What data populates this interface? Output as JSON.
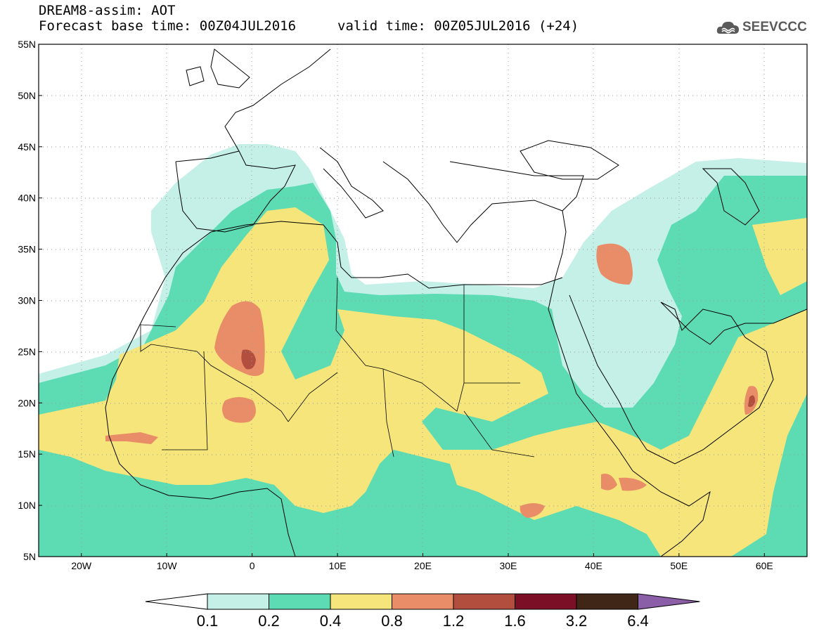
{
  "header": {
    "model_line": "DREAM8-assim: AOT",
    "base_time_line": "Forecast base time: 00Z04JUL2016",
    "valid_time_line": "valid time: 00Z05JUL2016 (+24)",
    "logo_text": "SEEVCCC",
    "logo_icon": "cloud-logo-icon"
  },
  "map": {
    "lon_range": [
      -25,
      65
    ],
    "lat_range": [
      5,
      55
    ],
    "lat_ticks": [
      {
        "value": 55,
        "label": "55N"
      },
      {
        "value": 50,
        "label": "50N"
      },
      {
        "value": 45,
        "label": "45N"
      },
      {
        "value": 40,
        "label": "40N"
      },
      {
        "value": 35,
        "label": "35N"
      },
      {
        "value": 30,
        "label": "30N"
      },
      {
        "value": 25,
        "label": "25N"
      },
      {
        "value": 20,
        "label": "20N"
      },
      {
        "value": 15,
        "label": "15N"
      },
      {
        "value": 10,
        "label": "10N"
      },
      {
        "value": 5,
        "label": "5N"
      }
    ],
    "lon_ticks": [
      {
        "value": -20,
        "label": "20W"
      },
      {
        "value": -10,
        "label": "10W"
      },
      {
        "value": 0,
        "label": "0"
      },
      {
        "value": 10,
        "label": "10E"
      },
      {
        "value": 20,
        "label": "20E"
      },
      {
        "value": 30,
        "label": "30E"
      },
      {
        "value": 40,
        "label": "40E"
      },
      {
        "value": 50,
        "label": "50E"
      },
      {
        "value": 60,
        "label": "60E"
      }
    ],
    "gridlines": true
  },
  "colorbar": {
    "levels": [
      "0.1",
      "0.2",
      "0.4",
      "0.8",
      "1.2",
      "1.6",
      "3.2",
      "6.4"
    ],
    "colors": [
      "#c4f0e8",
      "#5ddcb4",
      "#f5e57a",
      "#e98c68",
      "#b24e3e",
      "#7a0f25",
      "#3f2617"
    ],
    "below_color": "#ffffff",
    "above_color": "#8a5fa8"
  }
}
